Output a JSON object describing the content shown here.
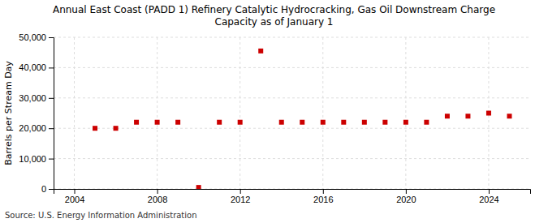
{
  "chart_data": {
    "type": "scatter",
    "title": "Annual East Coast (PADD 1) Refinery Catalytic Hydrocracking, Gas Oil Downstream Charge\nCapacity as of January 1",
    "ylabel": "Barrels per Stream Day",
    "annotations": [
      "Source: U.S. Energy Information Administration"
    ],
    "x": [
      2005,
      2006,
      2007,
      2008,
      2009,
      2010,
      2011,
      2012,
      2013,
      2014,
      2015,
      2016,
      2017,
      2018,
      2019,
      2020,
      2021,
      2022,
      2023,
      2024,
      2025
    ],
    "values": [
      20000,
      20000,
      22000,
      22000,
      22000,
      500,
      22000,
      22000,
      45500,
      22000,
      22000,
      22000,
      22000,
      22000,
      22000,
      22000,
      22000,
      24000,
      24000,
      25000,
      24000
    ],
    "color": "#cc0000",
    "marker": "square",
    "xlim": [
      2003.0,
      2026.0
    ],
    "xticks": [
      2004,
      2008,
      2012,
      2016,
      2020,
      2024
    ],
    "ylim": [
      0,
      50000
    ],
    "yticks": [
      0,
      {
        "value": 10000,
        "label": "10,000"
      },
      {
        "value": 20000,
        "label": "20,000"
      },
      {
        "value": 30000,
        "label": "30,000"
      },
      {
        "value": 40000,
        "label": "40,000"
      },
      {
        "value": 50000,
        "label": "50,000"
      }
    ],
    "grid": true
  }
}
